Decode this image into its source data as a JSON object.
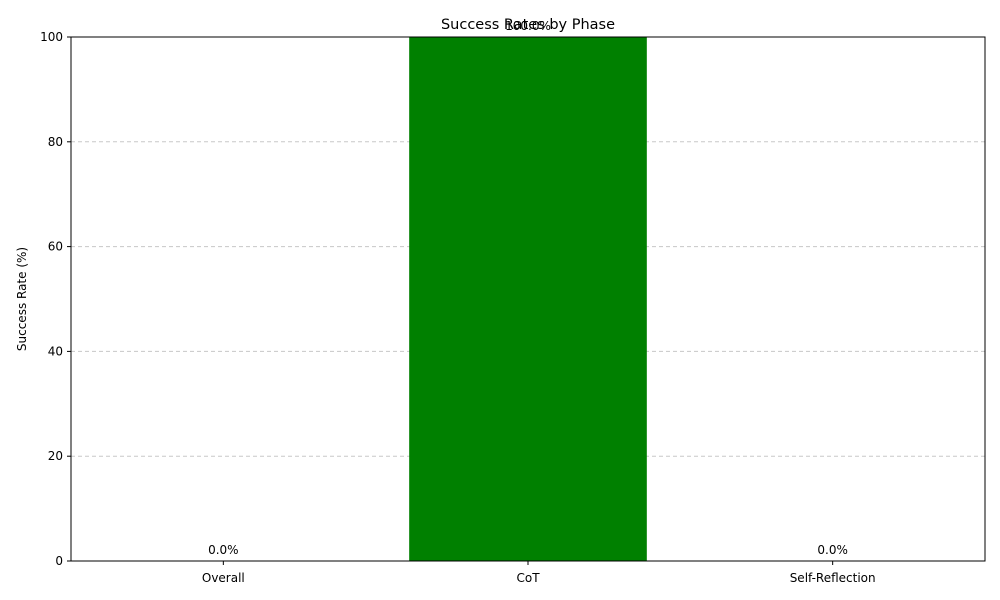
{
  "chart_data": {
    "type": "bar",
    "title": "Success Rates by Phase",
    "xlabel": "",
    "ylabel": "Success Rate (%)",
    "categories": [
      "Overall",
      "CoT",
      "Self-Reflection"
    ],
    "values": [
      0.0,
      100.0,
      0.0
    ],
    "data_labels": [
      "0.0%",
      "100.0%",
      "0.0%"
    ],
    "ylim": [
      0,
      100
    ],
    "yticks": [
      0,
      20,
      40,
      60,
      80,
      100
    ],
    "grid": "y-dashed",
    "bar_color": "#008000",
    "legend": "none"
  }
}
